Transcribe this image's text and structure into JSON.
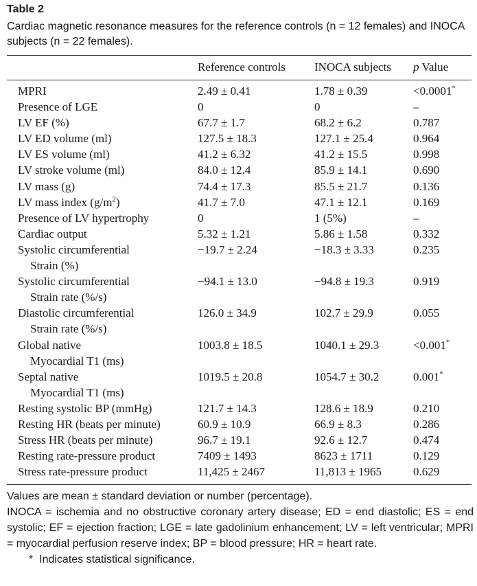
{
  "table": {
    "label": "Table 2",
    "caption": "Cardiac magnetic resonance measures for the reference controls (n = 12 females) and INOCA subjects (n = 22 females).",
    "columns": [
      "Reference controls",
      "INOCA subjects",
      "p Value"
    ],
    "rows": [
      {
        "label": "MPRI",
        "ref": "2.49 ± 0.41",
        "inoca": "1.78 ± 0.39",
        "p": "<0.0001",
        "sig": "*"
      },
      {
        "label": "Presence of LGE",
        "ref": "0",
        "inoca": "0",
        "p": "–"
      },
      {
        "label": "LV EF (%)",
        "ref": "67.7 ± 1.7",
        "inoca": "68.2 ± 6.2",
        "p": "0.787"
      },
      {
        "label": "LV ED volume (ml)",
        "ref": "127.5 ± 18.3",
        "inoca": "127.1 ± 25.4",
        "p": "0.964"
      },
      {
        "label": "LV ES volume (ml)",
        "ref": "41.2 ± 6.32",
        "inoca": "41.2 ± 15.5",
        "p": "0.998"
      },
      {
        "label": "LV stroke volume (ml)",
        "ref": "84.0 ± 12.4",
        "inoca": "85.9 ± 14.1",
        "p": "0.690"
      },
      {
        "label": "LV mass (g)",
        "ref": "74.4 ± 17.3",
        "inoca": "85.5 ± 21.7",
        "p": "0.136"
      },
      {
        "label": "LV mass index (g/m",
        "label_sup": "2",
        "label_end": ")",
        "ref": "41.7 ± 7.0",
        "inoca": "47.1 ± 12.1",
        "p": "0.169"
      },
      {
        "label": "Presence of LV hypertrophy",
        "ref": "0",
        "inoca": "1 (5%)",
        "p": "–"
      },
      {
        "label": "Cardiac output",
        "ref": "5.32 ± 1.21",
        "inoca": "5.86 ± 1.58",
        "p": "0.332"
      },
      {
        "label": "Systolic circumferential",
        "label2": "Strain (%)",
        "ref": "−19.7 ± 2.24",
        "inoca": "−18.3 ± 3.33",
        "p": "0.235"
      },
      {
        "label": "Systolic circumferential",
        "label2": "Strain rate (%/s)",
        "ref": "−94.1 ± 13.0",
        "inoca": "−94.8 ± 19.3",
        "p": "0.919"
      },
      {
        "label": "Diastolic circumferential",
        "label2": "Strain rate (%/s)",
        "ref": "126.0 ± 34.9",
        "inoca": "102.7 ± 29.9",
        "p": "0.055"
      },
      {
        "label": "Global native",
        "label2": "Myocardial T1 (ms)",
        "ref": "1003.8 ± 18.5",
        "inoca": "1040.1 ± 29.3",
        "p": "<0.001",
        "sig": "*"
      },
      {
        "label": "Septal native",
        "label2": "Myocardial T1 (ms)",
        "ref": "1019.5 ± 20.8",
        "inoca": "1054.7 ± 30.2",
        "p": "0.001",
        "sig": "*"
      },
      {
        "label": "Resting systolic BP (mmHg)",
        "ref": "121.7 ± 14.3",
        "inoca": "128.6 ± 18.9",
        "p": "0.210"
      },
      {
        "label": "Resting HR (beats per minute)",
        "ref": "60.9 ± 10.9",
        "inoca": "66.9 ± 8.3",
        "p": "0.286"
      },
      {
        "label": "Stress HR (beats per minute)",
        "ref": "96.7 ± 19.1",
        "inoca": "92.6 ± 12.7",
        "p": "0.474"
      },
      {
        "label": "Resting rate-pressure product",
        "ref": "7409 ± 1493",
        "inoca": "8623 ± 1711",
        "p": "0.129"
      },
      {
        "label": "Stress rate-pressure product",
        "ref": "11,425 ± 2467",
        "inoca": "11,813 ± 1965",
        "p": "0.629"
      }
    ],
    "notes": [
      "Values are mean ± standard deviation or number (percentage).",
      "INOCA = ischemia and no obstructive coronary artery disease; ED = end diastolic; ES = end systolic; EF = ejection fraction; LGE = late gadolinium enhancement; LV = left ventricular; MPRI = myocardial perfusion reserve index; BP = blood pressure; HR = heart rate."
    ],
    "footnote_symbol": "*",
    "footnote_text": "Indicates statistical significance."
  }
}
